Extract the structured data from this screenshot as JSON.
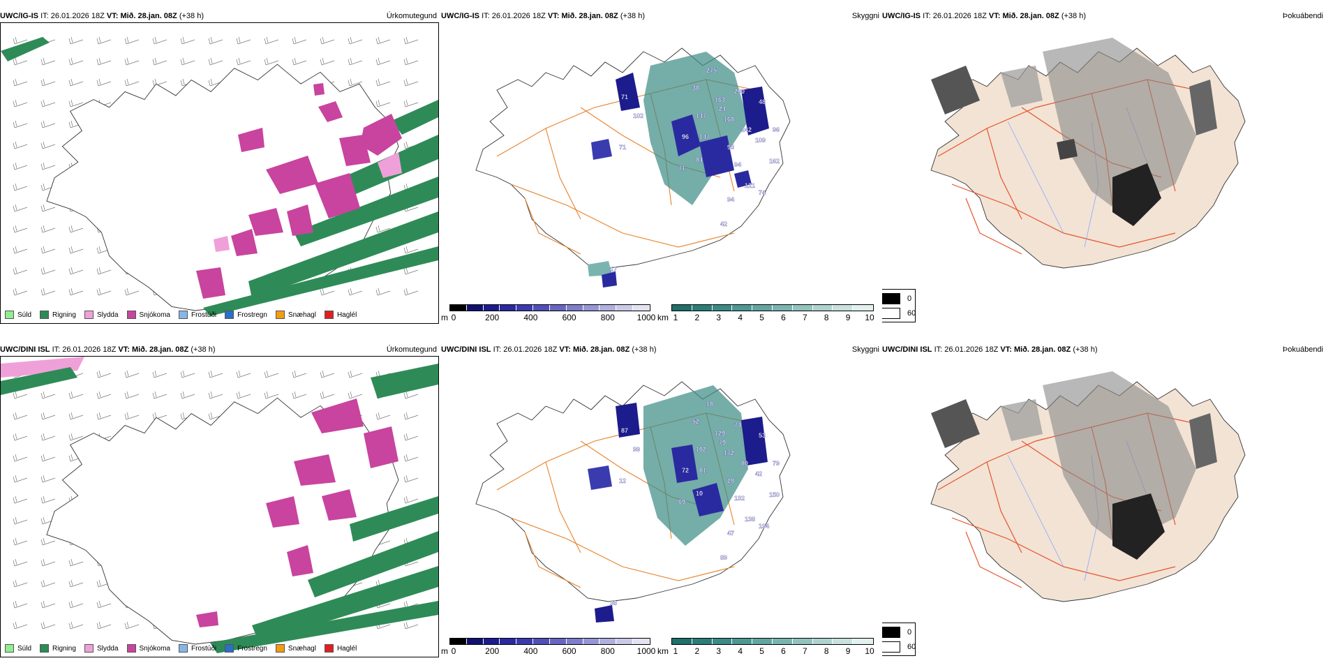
{
  "panels": [
    {
      "model": "UWC/IG-IS",
      "it_label": "IT:",
      "it_value": "26.01.2026 18Z",
      "vt_label": "VT:",
      "vt_value": "Mið. 28.jan. 08Z",
      "lead": "(+38 h)",
      "title": "Úrkomutegund"
    },
    {
      "model": "UWC/IG-IS",
      "it_label": "IT:",
      "it_value": "26.01.2026 18Z",
      "vt_label": "VT:",
      "vt_value": "Mið. 28.jan. 08Z",
      "lead": "(+38 h)",
      "title": "Skyggni"
    },
    {
      "model": "UWC/IG-IS",
      "it_label": "IT:",
      "it_value": "26.01.2026 18Z",
      "vt_label": "VT:",
      "vt_value": "Mið. 28.jan. 08Z",
      "lead": "(+38 h)",
      "title": "Þokuábendi"
    },
    {
      "model": "UWC/DINI ISL",
      "it_label": "IT:",
      "it_value": "26.01.2026 18Z",
      "vt_label": "VT:",
      "vt_value": "Mið. 28.jan. 08Z",
      "lead": "(+38 h)",
      "title": "Úrkomutegund"
    },
    {
      "model": "UWC/DINI ISL",
      "it_label": "IT:",
      "it_value": "26.01.2026 18Z",
      "vt_label": "VT:",
      "vt_value": "Mið. 28.jan. 08Z",
      "lead": "(+38 h)",
      "title": "Skyggni"
    },
    {
      "model": "UWC/DINI ISL",
      "it_label": "IT:",
      "it_value": "26.01.2026 18Z",
      "vt_label": "VT:",
      "vt_value": "Mið. 28.jan. 08Z",
      "lead": "(+38 h)",
      "title": "Þokuábendi"
    }
  ],
  "precip_legend": [
    {
      "label": "Súld",
      "color": "#90ee90"
    },
    {
      "label": "Rigning",
      "color": "#2e8b57"
    },
    {
      "label": "Slydda",
      "color": "#f0a0d8"
    },
    {
      "label": "Snjókoma",
      "color": "#c8449e"
    },
    {
      "label": "Frostúði",
      "color": "#87b5e8"
    },
    {
      "label": "Frostregn",
      "color": "#2a6fc9"
    },
    {
      "label": "Snæhagl",
      "color": "#f39c12"
    },
    {
      "label": "Haglél",
      "color": "#e02020"
    }
  ],
  "cloudbase_bar": {
    "unit": "m",
    "ticks": [
      "0",
      "200",
      "400",
      "600",
      "800",
      "1000"
    ],
    "colors": [
      "#000000",
      "#101070",
      "#1c1c8c",
      "#2a2aa0",
      "#3b3bb0",
      "#5050b8",
      "#6767c2",
      "#7e7ecc",
      "#9696d6",
      "#b0b0e0",
      "#cacae8",
      "#e2e2f2"
    ]
  },
  "visibility_bar": {
    "unit": "km",
    "ticks": [
      "1",
      "2",
      "3",
      "4",
      "5",
      "6",
      "7",
      "8",
      "9",
      "10"
    ],
    "colors": [
      "#1f6f6a",
      "#2c7d78",
      "#3b8a85",
      "#4d9893",
      "#62a6a1",
      "#7ab4b0",
      "#93c3bf",
      "#aed2ce",
      "#c8e1de",
      "#e2f0ee"
    ]
  },
  "fog_legend": {
    "items": [
      {
        "label": "0",
        "color": "#000000"
      },
      {
        "label": "60",
        "color": "#ffffff"
      }
    ]
  },
  "ceiling_labels": [
    {
      "panel": 1,
      "values": [
        "71",
        "102",
        "71",
        "96",
        "84",
        "71",
        "147",
        "147",
        "242",
        "48",
        "96",
        "109",
        "162",
        "94",
        "121",
        "74",
        "94",
        "42",
        "24",
        "17",
        "38",
        "163",
        "168",
        "275",
        "200",
        "93"
      ]
    },
    {
      "panel": 4,
      "values": [
        "87",
        "99",
        "12",
        "72",
        "10",
        "69",
        "102",
        "81",
        "80",
        "53",
        "79",
        "42",
        "150",
        "132",
        "138",
        "194",
        "47",
        "89",
        "79",
        "38",
        "52",
        "129",
        "172",
        "18",
        "74",
        "28"
      ]
    }
  ]
}
